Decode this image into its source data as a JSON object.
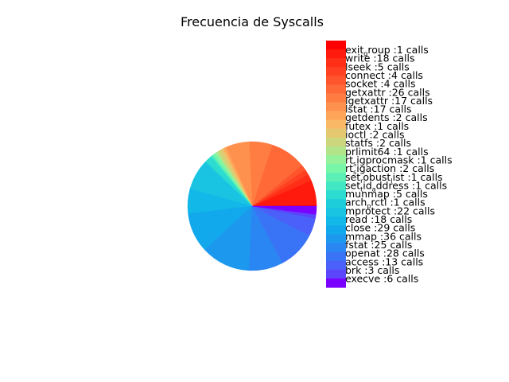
{
  "chart_data": {
    "type": "pie",
    "title": "Frecuencia de Syscalls",
    "legend_position": "right",
    "grid": false,
    "slices": [
      {
        "label": "exit_group",
        "value": 1,
        "color": "#ff0000"
      },
      {
        "label": "write",
        "value": 18,
        "color": "#ff1a0d"
      },
      {
        "label": "lseek",
        "value": 5,
        "color": "#ff2e17"
      },
      {
        "label": "connect",
        "value": 4,
        "color": "#ff4122"
      },
      {
        "label": "socket",
        "value": 4,
        "color": "#ff552d"
      },
      {
        "label": "getxattr",
        "value": 26,
        "color": "#ff6938"
      },
      {
        "label": "lgetxattr",
        "value": 17,
        "color": "#ff7d43"
      },
      {
        "label": "lstat",
        "value": 17,
        "color": "#ff914e"
      },
      {
        "label": "getdents",
        "value": 2,
        "color": "#ffa55a"
      },
      {
        "label": "futex",
        "value": 1,
        "color": "#f8b966"
      },
      {
        "label": "ioctl",
        "value": 2,
        "color": "#e4c870"
      },
      {
        "label": "statfs",
        "value": 2,
        "color": "#cdd67c"
      },
      {
        "label": "prlimit64",
        "value": 1,
        "color": "#b4e48a"
      },
      {
        "label": "rt_sigprocmask",
        "value": 1,
        "color": "#96f29a"
      },
      {
        "label": "rt_sigaction",
        "value": 2,
        "color": "#78f6a8"
      },
      {
        "label": "set_robust_list",
        "value": 1,
        "color": "#5cf0b6"
      },
      {
        "label": "set_tid_address",
        "value": 1,
        "color": "#42e8c4"
      },
      {
        "label": "munmap",
        "value": 5,
        "color": "#2cdcd0"
      },
      {
        "label": "arch_prctl",
        "value": 1,
        "color": "#1ecdda"
      },
      {
        "label": "mprotect",
        "value": 22,
        "color": "#18c4e2"
      },
      {
        "label": "read",
        "value": 18,
        "color": "#12b8e8"
      },
      {
        "label": "close",
        "value": 29,
        "color": "#12a8ec"
      },
      {
        "label": "mmap",
        "value": 36,
        "color": "#1c98ef"
      },
      {
        "label": "fstat",
        "value": 25,
        "color": "#2a86f2"
      },
      {
        "label": "openat",
        "value": 28,
        "color": "#3a74f6"
      },
      {
        "label": "access",
        "value": 13,
        "color": "#4a60f8"
      },
      {
        "label": "brk",
        "value": 3,
        "color": "#5c46fb"
      },
      {
        "label": "execve",
        "value": 6,
        "color": "#7a00ff"
      }
    ],
    "legend_entries": [
      {
        "parts": [
          [
            "exit",
            ""
          ],
          [
            "g",
            "sub"
          ],
          [
            "roup  :1 calls",
            ""
          ]
        ]
      },
      {
        "parts": [
          [
            "write  :18 calls",
            ""
          ]
        ]
      },
      {
        "parts": [
          [
            "lseek  :5 calls",
            ""
          ]
        ]
      },
      {
        "parts": [
          [
            "connect  :4 calls",
            ""
          ]
        ]
      },
      {
        "parts": [
          [
            "socket  :4 calls",
            ""
          ]
        ]
      },
      {
        "parts": [
          [
            "getxattr  :26 calls",
            ""
          ]
        ]
      },
      {
        "parts": [
          [
            "lgetxattr  :17 calls",
            ""
          ]
        ]
      },
      {
        "parts": [
          [
            "lstat  :17 calls",
            ""
          ]
        ]
      },
      {
        "parts": [
          [
            "getdents  :2 calls",
            ""
          ]
        ]
      },
      {
        "parts": [
          [
            "futex  :1 calls",
            ""
          ]
        ]
      },
      {
        "parts": [
          [
            "ioctl  :2 calls",
            ""
          ]
        ]
      },
      {
        "parts": [
          [
            "statfs  :2 calls",
            ""
          ]
        ]
      },
      {
        "parts": [
          [
            "prlimit64  :1 calls",
            ""
          ]
        ]
      },
      {
        "parts": [
          [
            "rt",
            ""
          ],
          [
            "s",
            "sub"
          ],
          [
            "igprocmask  :1 calls",
            ""
          ]
        ]
      },
      {
        "parts": [
          [
            "rt",
            ""
          ],
          [
            "s",
            "sub"
          ],
          [
            "igaction  :2 calls",
            ""
          ]
        ]
      },
      {
        "parts": [
          [
            "set",
            ""
          ],
          [
            "r",
            "sub"
          ],
          [
            "obust",
            ""
          ],
          [
            "l",
            "sub"
          ],
          [
            "ist  :1 calls",
            ""
          ]
        ]
      },
      {
        "parts": [
          [
            "set",
            ""
          ],
          [
            "t",
            "sub"
          ],
          [
            "id",
            ""
          ],
          [
            "a",
            "sub"
          ],
          [
            "ddress  :1 calls",
            ""
          ]
        ]
      },
      {
        "parts": [
          [
            "munmap  :5 calls",
            ""
          ]
        ]
      },
      {
        "parts": [
          [
            "arch",
            ""
          ],
          [
            "p",
            "sub"
          ],
          [
            "rctl  :1 calls",
            ""
          ]
        ]
      },
      {
        "parts": [
          [
            "mprotect  :22 calls",
            ""
          ]
        ]
      },
      {
        "parts": [
          [
            "read  :18 calls",
            ""
          ]
        ]
      },
      {
        "parts": [
          [
            "close  :29 calls",
            ""
          ]
        ]
      },
      {
        "parts": [
          [
            "mmap  :36 calls",
            ""
          ]
        ]
      },
      {
        "parts": [
          [
            "fstat  :25 calls",
            ""
          ]
        ]
      },
      {
        "parts": [
          [
            "openat  :28 calls",
            ""
          ]
        ]
      },
      {
        "parts": [
          [
            "access  :13 calls",
            ""
          ]
        ]
      },
      {
        "parts": [
          [
            "brk  :3 calls",
            ""
          ]
        ]
      },
      {
        "parts": [
          [
            "execve  :6 calls",
            ""
          ]
        ]
      }
    ]
  }
}
